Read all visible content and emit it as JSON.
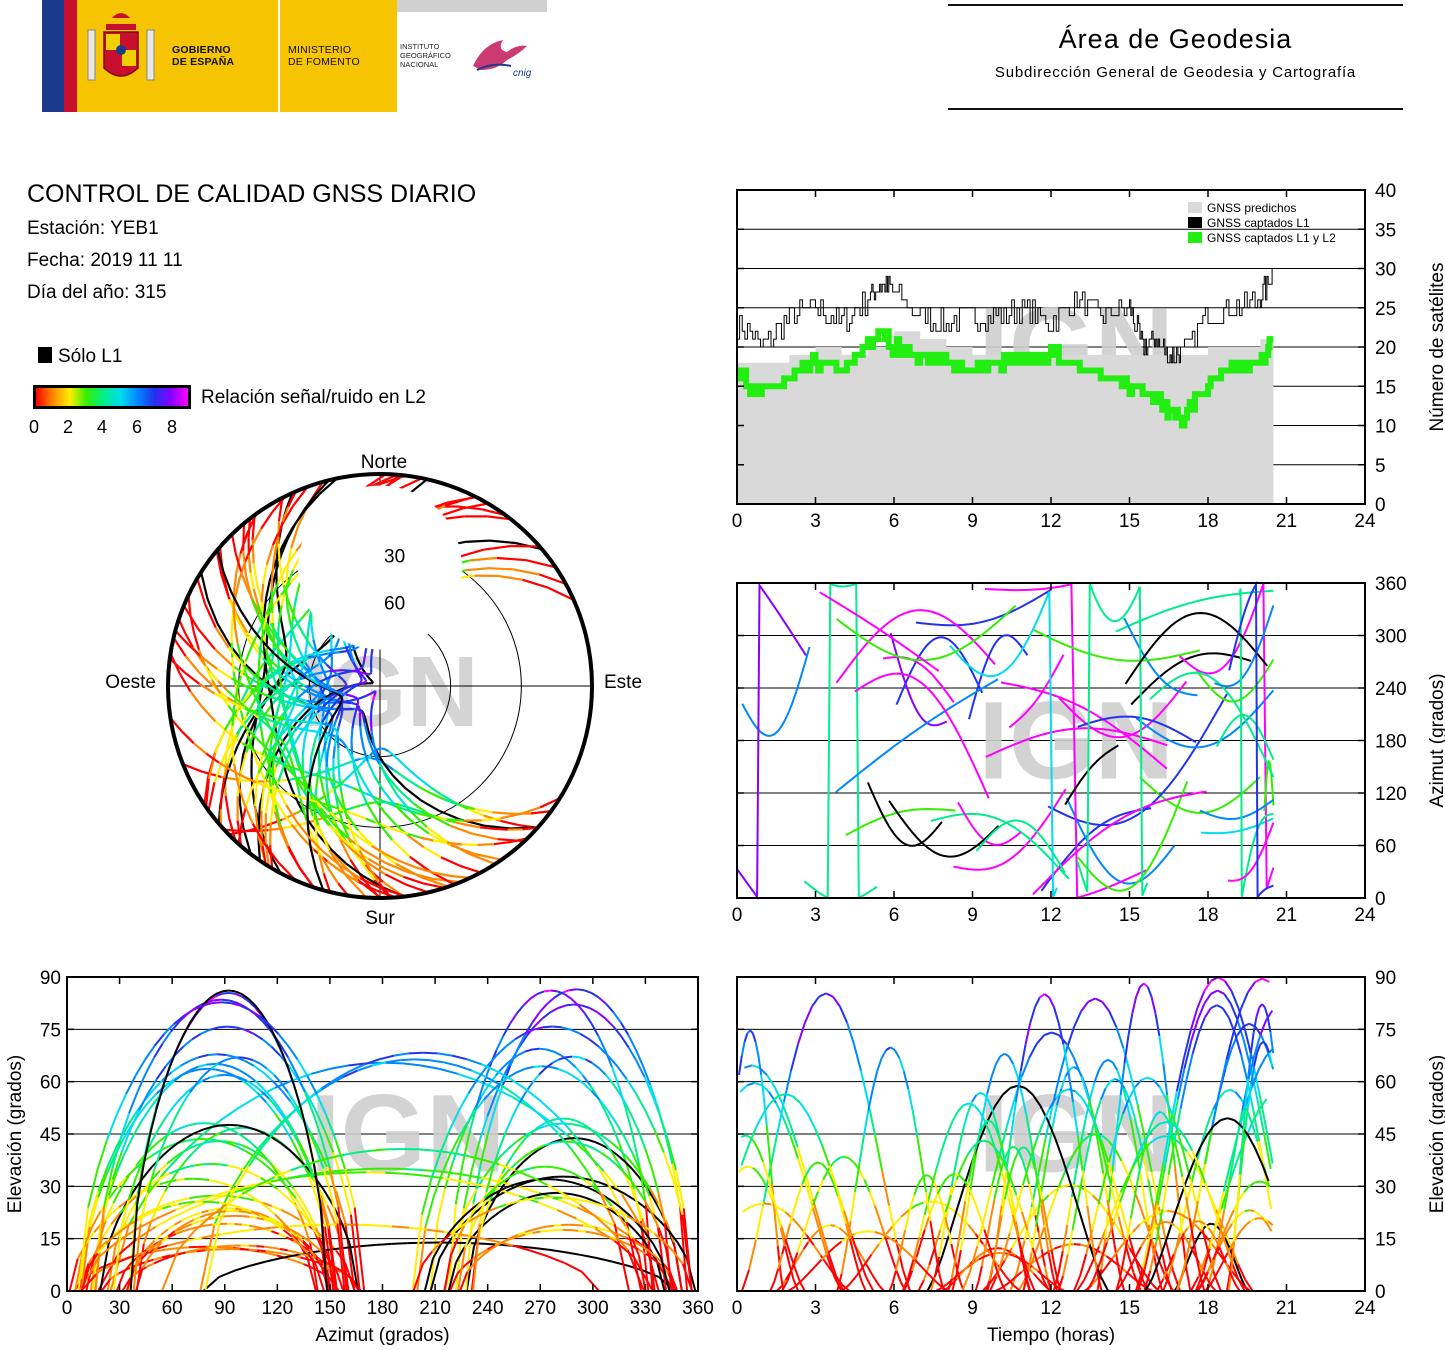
{
  "header": {
    "gov_line1": "GOBIERNO",
    "gov_line2": "DE ESPAÑA",
    "ministry_line1": "MINISTERIO",
    "ministry_line2": "DE FOMENTO",
    "ign_line1": "INSTITUTO",
    "ign_line2": "GEOGRÁFICO",
    "ign_line3": "NACIONAL",
    "cnig_text": "cnig",
    "area_title": "Área de Geodesia",
    "area_subtitle": "Subdirección General de Geodesia y Cartografía",
    "watermark": "IGN"
  },
  "report": {
    "title": "CONTROL DE CALIDAD GNSS DIARIO",
    "station": "Estación: YEB1",
    "date": "Fecha: 2019 11 11",
    "doy": "Día del año: 315",
    "legend_l1": "Sólo L1",
    "legend_snr": "Relación señal/ruido en L2",
    "snr_ticks": [
      "0",
      "2",
      "4",
      "6",
      "8"
    ]
  },
  "colors": {
    "predicted": "#d9d9d9",
    "l1": "#000000",
    "l1l2": "#22ee11",
    "snr_scale": [
      "#ff0000",
      "#ff8800",
      "#ffee00",
      "#33ee00",
      "#00ee88",
      "#00ddee",
      "#0088ff",
      "#2233ee",
      "#8800ff",
      "#ff00ff"
    ]
  },
  "chart_data": [
    {
      "id": "satellite-count",
      "type": "line",
      "xlabel": "",
      "ylabel": "Número de satélites",
      "xlim": [
        0,
        24
      ],
      "ylim": [
        0,
        40
      ],
      "xticks": [
        "0",
        "3",
        "6",
        "9",
        "12",
        "15",
        "18",
        "21",
        "24"
      ],
      "yticks": [
        "0",
        "5",
        "10",
        "15",
        "20",
        "25",
        "30",
        "35",
        "40"
      ],
      "grid": "horizontal",
      "legend_position": "top-right",
      "series": [
        {
          "name": "GNSS predichos",
          "x": [
            0,
            1,
            2,
            3,
            4,
            5,
            6,
            7,
            8,
            9,
            10,
            11,
            12,
            13,
            14,
            15,
            16,
            17,
            18,
            19,
            20,
            20.5
          ],
          "values": [
            18,
            18,
            19,
            20,
            19,
            20,
            22,
            21,
            20,
            19,
            19,
            19,
            19,
            19,
            19,
            19,
            19,
            19,
            20,
            20,
            21,
            21
          ]
        },
        {
          "name": "GNSS captados L1",
          "x": [
            0,
            1,
            2,
            3,
            4,
            5,
            5.5,
            6,
            7,
            8,
            9,
            10,
            11,
            12,
            13,
            14,
            15,
            15.5,
            16,
            16.5,
            17,
            18,
            19,
            20,
            20.5
          ],
          "values": [
            23,
            20,
            24,
            25,
            23,
            26,
            28,
            27,
            24,
            23,
            24,
            24,
            25,
            23,
            26,
            24,
            25,
            20,
            21,
            19,
            19,
            24,
            25,
            26,
            30
          ]
        },
        {
          "name": "GNSS captados L1 y L2",
          "x": [
            0,
            0.5,
            1,
            2,
            3,
            4,
            5,
            5.5,
            6,
            7,
            8,
            9,
            10,
            11,
            12,
            13,
            14,
            15,
            16,
            16.5,
            17,
            18,
            19,
            20,
            20.5
          ],
          "values": [
            17,
            15,
            14,
            16,
            18,
            17,
            20,
            22,
            20,
            19,
            18,
            17,
            18,
            18,
            19,
            18,
            16,
            15,
            14,
            12,
            11,
            15,
            17,
            18,
            21
          ]
        }
      ]
    },
    {
      "id": "azimuth-vs-time",
      "type": "scatter",
      "xlabel": "",
      "ylabel": "Azimut (grados)",
      "xlim": [
        0,
        24
      ],
      "ylim": [
        0,
        360
      ],
      "xticks": [
        "0",
        "3",
        "6",
        "9",
        "12",
        "15",
        "18",
        "21",
        "24"
      ],
      "yticks": [
        "0",
        "60",
        "120",
        "180",
        "240",
        "300",
        "360"
      ]
    },
    {
      "id": "skyplot",
      "type": "scatter",
      "labels": {
        "north": "Norte",
        "south": "Sur",
        "west": "Oeste",
        "east": "Este"
      },
      "ring_labels": [
        "30",
        "60"
      ]
    },
    {
      "id": "elevation-vs-azimuth",
      "type": "scatter",
      "xlabel": "Azimut (grados)",
      "ylabel": "Elevación (grados)",
      "xlim": [
        0,
        360
      ],
      "ylim": [
        0,
        90
      ],
      "xticks": [
        "0",
        "30",
        "60",
        "90",
        "120",
        "150",
        "180",
        "210",
        "240",
        "270",
        "300",
        "330",
        "360"
      ],
      "yticks": [
        "0",
        "15",
        "30",
        "45",
        "60",
        "75",
        "90"
      ]
    },
    {
      "id": "elevation-vs-time",
      "type": "scatter",
      "xlabel": "Tiempo (horas)",
      "ylabel": "Elevación (grados)",
      "xlim": [
        0,
        24
      ],
      "ylim": [
        0,
        90
      ],
      "xticks": [
        "0",
        "3",
        "6",
        "9",
        "12",
        "15",
        "18",
        "21",
        "24"
      ],
      "yticks": [
        "0",
        "15",
        "30",
        "45",
        "60",
        "75",
        "90"
      ]
    }
  ]
}
